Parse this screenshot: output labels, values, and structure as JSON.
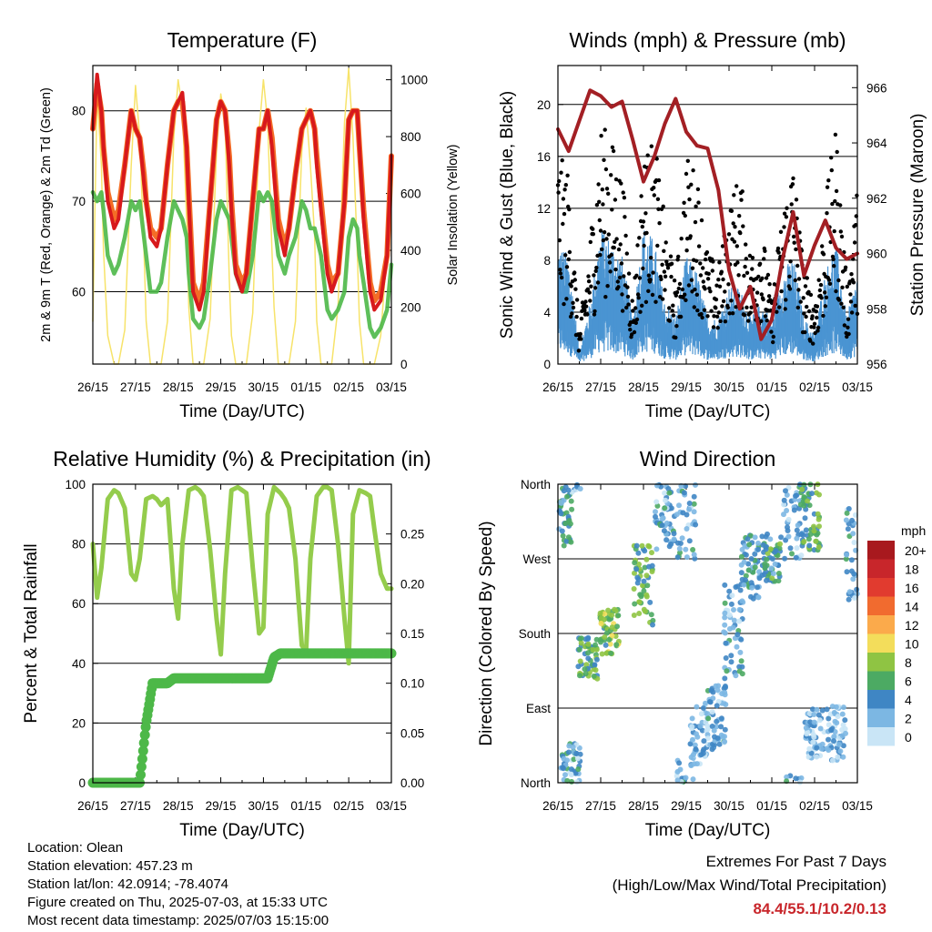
{
  "x_ticks": [
    "26/15",
    "27/15",
    "28/15",
    "29/15",
    "30/15",
    "01/15",
    "02/15",
    "03/15"
  ],
  "xlabel": "Time (Day/UTC)",
  "info": {
    "location": "Location: Olean",
    "elevation": "Station elevation: 457.23 m",
    "latlon": "Station lat/lon: 42.0914; -78.4074",
    "created": "Figure created on Thu, 2025-07-03, at 15:33 UTC",
    "recent": "Most recent data timestamp: 2025/07/03 15:15:00"
  },
  "extremes": {
    "line1": "Extremes For Past 7 Days",
    "line2": "(High/Low/Max Wind/Total Precipitation)",
    "values": "84.4/55.1/10.2/0.13"
  },
  "colors": {
    "t2m": "#d7191c",
    "t9m": "#f46d26",
    "td": "#4db848",
    "solar": "#f7e36a",
    "gust": "#000000",
    "wind": "#4a94d2",
    "pressure": "#a31f24",
    "rh": "#94cc4c",
    "precip": "#4db848"
  },
  "chart_data": [
    {
      "type": "line",
      "title": "Temperature (F)",
      "xlabel": "Time (Day/UTC)",
      "ylabel": "2m & 9m T (Red, Orange) & 2m Td (Green)",
      "ylabel_right": "Solar Insolation (Yellow)",
      "ylim": [
        52,
        85
      ],
      "yticks": [
        60,
        70,
        80
      ],
      "ylim_right": [
        0,
        1050
      ],
      "yticks_right": [
        0,
        200,
        400,
        600,
        800,
        1000
      ],
      "x": [
        0,
        0.1,
        0.2,
        0.25,
        0.35,
        0.5,
        0.6,
        0.75,
        0.9,
        1.0,
        1.1,
        1.2,
        1.25,
        1.35,
        1.5,
        1.6,
        1.75,
        1.9,
        2.0,
        2.1,
        2.2,
        2.25,
        2.35,
        2.5,
        2.6,
        2.75,
        2.9,
        3.0,
        3.1,
        3.2,
        3.25,
        3.35,
        3.5,
        3.6,
        3.75,
        3.9,
        4.0,
        4.1,
        4.2,
        4.25,
        4.35,
        4.5,
        4.6,
        4.75,
        4.9,
        5.0,
        5.1,
        5.2,
        5.25,
        5.35,
        5.5,
        5.6,
        5.75,
        5.9,
        6.0,
        6.1,
        6.2,
        6.25,
        6.35,
        6.5,
        6.6,
        6.75,
        6.9,
        7.0
      ],
      "grid": true,
      "series": [
        {
          "values": [
            78,
            84,
            80,
            76,
            70,
            67,
            68,
            74,
            80,
            78,
            77,
            72,
            70,
            66,
            65,
            67,
            74,
            80,
            81,
            82,
            76,
            70,
            60,
            58,
            60,
            70,
            79,
            81,
            80,
            74,
            69,
            62,
            60,
            62,
            70,
            78,
            78,
            80,
            76,
            73,
            67,
            64,
            67,
            73,
            78,
            79,
            80,
            78,
            74,
            69,
            62,
            60,
            62,
            70,
            79,
            80,
            80,
            76,
            68,
            60,
            58,
            59,
            64,
            75
          ]
        },
        {
          "values": [
            78,
            83,
            80,
            76,
            71,
            68,
            69,
            74,
            80,
            78,
            77,
            73,
            70,
            67,
            66,
            67,
            74,
            80,
            81,
            81,
            76,
            71,
            61,
            59,
            61,
            70,
            79,
            81,
            80,
            75,
            70,
            63,
            61,
            62,
            70,
            78,
            78,
            80,
            77,
            74,
            68,
            65,
            67,
            73,
            78,
            79,
            80,
            78,
            75,
            70,
            63,
            61,
            62,
            70,
            79,
            80,
            80,
            76,
            69,
            61,
            59,
            60,
            64,
            75
          ]
        },
        {
          "values": [
            71,
            70,
            71,
            69,
            64,
            62,
            63,
            66,
            70,
            69,
            70,
            66,
            64,
            60,
            60,
            61,
            66,
            70,
            69,
            68,
            66,
            62,
            57,
            56,
            57,
            62,
            68,
            70,
            69,
            68,
            66,
            62,
            60,
            60,
            64,
            71,
            70,
            71,
            70,
            68,
            64,
            62,
            64,
            66,
            70,
            69,
            67,
            67,
            66,
            64,
            58,
            57,
            58,
            60,
            66,
            68,
            67,
            64,
            61,
            56,
            55,
            56,
            58,
            63
          ]
        },
        {
          "values": [
            150,
            950,
            700,
            400,
            100,
            0,
            0,
            120,
            700,
            980,
            800,
            400,
            150,
            0,
            0,
            0,
            150,
            800,
            1000,
            900,
            500,
            200,
            0,
            0,
            0,
            160,
            750,
            950,
            850,
            300,
            100,
            0,
            0,
            0,
            180,
            820,
            1000,
            850,
            400,
            200,
            0,
            0,
            0,
            150,
            750,
            900,
            700,
            450,
            150,
            0,
            0,
            0,
            200,
            850,
            1040,
            800,
            400,
            150,
            0,
            0,
            0,
            100,
            400,
            700
          ]
        }
      ]
    },
    {
      "type": "line",
      "title": "Winds (mph) & Pressure (mb)",
      "xlabel": "Time (Day/UTC)",
      "ylabel": "Sonic Wind & Gust (Blue, Black)",
      "ylabel_right": "Station Pressure (Maroon)",
      "ylim": [
        0,
        23
      ],
      "yticks": [
        0,
        4,
        8,
        12,
        16,
        20
      ],
      "ylim_right": [
        956,
        966.8
      ],
      "yticks_right": [
        956,
        958,
        960,
        962,
        964,
        966
      ],
      "x": [
        0,
        0.25,
        0.5,
        0.75,
        1.0,
        1.25,
        1.5,
        1.75,
        2.0,
        2.25,
        2.5,
        2.75,
        3.0,
        3.25,
        3.5,
        3.75,
        4.0,
        4.25,
        4.5,
        4.75,
        5.0,
        5.25,
        5.5,
        5.75,
        6.0,
        6.25,
        6.5,
        6.75,
        7.0
      ],
      "grid": true,
      "series": [
        {
          "values": [
            13,
            12,
            2,
            8,
            15,
            14,
            12,
            4,
            13,
            14,
            9,
            5,
            13,
            12,
            7,
            6,
            10,
            12,
            7,
            9,
            4,
            10,
            13,
            6,
            4,
            10,
            15,
            5,
            11
          ]
        },
        {
          "values": [
            8,
            7,
            1,
            4,
            9,
            8,
            7,
            3,
            9,
            8,
            4,
            3,
            7,
            6,
            3,
            3,
            5,
            5,
            3,
            4,
            3,
            6,
            7,
            3,
            2,
            6,
            8,
            3,
            6
          ]
        },
        {
          "values": [
            964.5,
            963.7,
            964.8,
            965.9,
            965.7,
            965.3,
            965.5,
            964.1,
            962.6,
            963.5,
            964.7,
            965.6,
            964.4,
            963.9,
            963.8,
            962.3,
            959.4,
            958.0,
            958.8,
            956.9,
            957.6,
            959.8,
            961.5,
            959.2,
            960.3,
            961.2,
            960.2,
            959.8,
            960.0
          ]
        }
      ]
    },
    {
      "type": "line",
      "title": "Relative Humidity (%) & Precipitation (in)",
      "xlabel": "Time (Day/UTC)",
      "ylabel": "Percent & Total Rainfall",
      "ylim": [
        0,
        100
      ],
      "yticks": [
        0,
        20,
        40,
        60,
        80,
        100
      ],
      "ylim_right": [
        0,
        0.3
      ],
      "yticks_right": [
        0.0,
        0.05,
        0.1,
        0.15,
        0.2,
        0.25
      ],
      "x": [
        0,
        0.1,
        0.2,
        0.35,
        0.5,
        0.6,
        0.75,
        0.9,
        1.0,
        1.1,
        1.25,
        1.4,
        1.5,
        1.6,
        1.75,
        1.9,
        2.0,
        2.1,
        2.25,
        2.4,
        2.5,
        2.6,
        2.75,
        2.9,
        3.0,
        3.1,
        3.25,
        3.4,
        3.5,
        3.6,
        3.75,
        3.9,
        4.0,
        4.1,
        4.25,
        4.4,
        4.5,
        4.6,
        4.75,
        4.9,
        5.0,
        5.1,
        5.25,
        5.4,
        5.5,
        5.6,
        5.75,
        5.9,
        6.0,
        6.1,
        6.25,
        6.4,
        6.5,
        6.6,
        6.75,
        6.9,
        7.0
      ],
      "grid": true,
      "series": [
        {
          "values": [
            80,
            62,
            72,
            95,
            98,
            97,
            92,
            70,
            68,
            75,
            95,
            96,
            95,
            93,
            95,
            65,
            55,
            80,
            98,
            99,
            98,
            96,
            78,
            55,
            43,
            70,
            98,
            99,
            98,
            97,
            72,
            50,
            52,
            90,
            99,
            97,
            95,
            92,
            75,
            46,
            44,
            75,
            96,
            99,
            99,
            98,
            80,
            55,
            40,
            90,
            98,
            97,
            96,
            85,
            70,
            65,
            65
          ]
        },
        {
          "values": [
            0,
            0,
            0,
            0,
            0,
            0,
            0,
            0,
            0,
            0,
            0.06,
            0.1,
            0.1,
            0.1,
            0.1,
            0.105,
            0.105,
            0.105,
            0.105,
            0.105,
            0.105,
            0.105,
            0.105,
            0.105,
            0.105,
            0.105,
            0.105,
            0.105,
            0.105,
            0.105,
            0.105,
            0.105,
            0.105,
            0.105,
            0.126,
            0.13,
            0.13,
            0.13,
            0.13,
            0.13,
            0.13,
            0.13,
            0.13,
            0.13,
            0.13,
            0.13,
            0.13,
            0.13,
            0.13,
            0.13,
            0.13,
            0.13,
            0.13,
            0.13,
            0.13,
            0.13,
            0.13
          ]
        }
      ]
    },
    {
      "type": "scatter",
      "title": "Wind Direction",
      "xlabel": "Time (Day/UTC)",
      "ylabel": "Direction (Colored By Speed)",
      "ylim": [
        0,
        360
      ],
      "ytick_labels": [
        "North",
        "East",
        "South",
        "West",
        "North"
      ],
      "grid": true,
      "legend_title": "mph",
      "legend_labels": [
        "20+",
        "18",
        "16",
        "14",
        "12",
        "10",
        "8",
        "6",
        "4",
        "2",
        "0"
      ],
      "legend_colors": [
        "#a8191e",
        "#c8262b",
        "#e13b2f",
        "#f16b2f",
        "#fbaa4b",
        "#f3dd5b",
        "#8fc443",
        "#4caa63",
        "#3f86c4",
        "#7cb7e3",
        "#c9e5f6"
      ],
      "clusters": [
        {
          "x": 0.1,
          "dir": 320,
          "spread": 35,
          "speed": 5
        },
        {
          "x": 0.3,
          "dir": 20,
          "spread": 30,
          "speed": 3
        },
        {
          "x": 0.7,
          "dir": 150,
          "spread": 25,
          "speed": 6
        },
        {
          "x": 1.2,
          "dir": 180,
          "spread": 30,
          "speed": 7
        },
        {
          "x": 2.0,
          "dir": 240,
          "spread": 50,
          "speed": 6
        },
        {
          "x": 2.5,
          "dir": 320,
          "spread": 40,
          "speed": 3
        },
        {
          "x": 3.0,
          "dir": 330,
          "spread": 60,
          "speed": 3
        },
        {
          "x": 3.3,
          "dir": 60,
          "spread": 40,
          "speed": 2
        },
        {
          "x": 3.7,
          "dir": 80,
          "spread": 40,
          "speed": 3
        },
        {
          "x": 4.1,
          "dir": 180,
          "spread": 60,
          "speed": 3
        },
        {
          "x": 4.5,
          "dir": 260,
          "spread": 40,
          "speed": 4
        },
        {
          "x": 5.0,
          "dir": 270,
          "spread": 30,
          "speed": 5
        },
        {
          "x": 5.5,
          "dir": 320,
          "spread": 50,
          "speed": 3
        },
        {
          "x": 5.9,
          "dir": 320,
          "spread": 40,
          "speed": 6
        },
        {
          "x": 6.0,
          "dir": 60,
          "spread": 30,
          "speed": 2
        },
        {
          "x": 6.5,
          "dir": 60,
          "spread": 35,
          "speed": 2
        },
        {
          "x": 6.95,
          "dir": 280,
          "spread": 60,
          "speed": 3
        }
      ]
    }
  ]
}
